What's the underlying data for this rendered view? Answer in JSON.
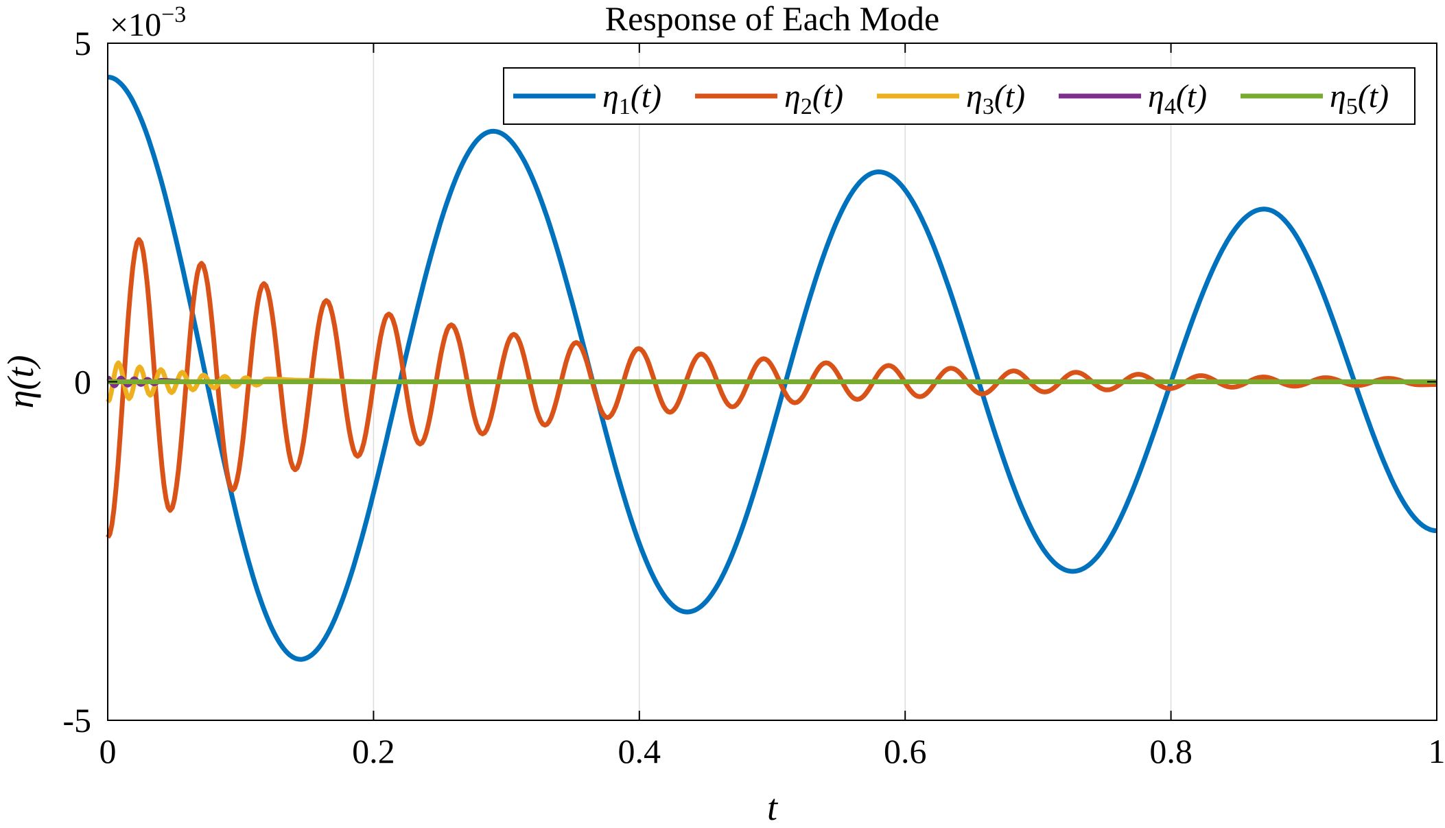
{
  "chart_data": {
    "type": "line",
    "title": "Response of Each Mode",
    "xlabel": "t",
    "ylabel": "η(t)",
    "y_exponent_label": "×10",
    "y_exponent_power": "−3",
    "xlim": [
      0,
      1
    ],
    "ylim": [
      -5,
      5
    ],
    "x_ticks": [
      0,
      0.2,
      0.4,
      0.6,
      0.8,
      1
    ],
    "x_tick_labels": [
      "0",
      "0.2",
      "0.4",
      "0.6",
      "0.8",
      "1"
    ],
    "y_ticks": [
      -5,
      0,
      5
    ],
    "y_tick_labels": [
      "-5",
      "0",
      "5"
    ],
    "grid": "vertical",
    "legend_position": "top-right",
    "series": [
      {
        "name": "η1(t)",
        "sym": "η",
        "sub": "1",
        "arg": "(t)",
        "color": "#0072BD",
        "x": [
          0,
          0.145,
          0.29,
          0.436,
          0.58,
          0.726,
          0.87,
          1.0
        ],
        "y": [
          4.5,
          -4.1,
          3.7,
          -3.4,
          3.1,
          -2.8,
          2.55,
          -2.2
        ]
      },
      {
        "name": "η2(t)",
        "sym": "η",
        "sub": "2",
        "arg": "(t)",
        "color": "#D95319",
        "x": [
          0,
          0.0235,
          0.047,
          0.0705,
          0.094,
          0.1175,
          0.141,
          0.1645,
          0.188,
          0.2115,
          0.235,
          0.2585,
          0.282,
          0.3055,
          0.329,
          0.3525,
          0.376,
          0.3995,
          0.423,
          0.4465,
          0.47,
          0.4935,
          0.517,
          0.5405,
          0.564,
          0.5875,
          0.611,
          0.6345,
          0.658,
          0.6815,
          0.705,
          0.7285,
          0.752,
          0.7755,
          0.799,
          0.8225,
          0.846,
          0.8695,
          0.893,
          0.9165,
          0.94,
          0.9635,
          0.987,
          1.0
        ],
        "y": [
          -2.3,
          2.1,
          -1.9,
          1.75,
          -1.6,
          1.45,
          -1.3,
          1.2,
          -1.1,
          1.0,
          -0.92,
          0.84,
          -0.77,
          0.7,
          -0.64,
          0.58,
          -0.53,
          0.49,
          -0.45,
          0.41,
          -0.37,
          0.34,
          -0.31,
          0.28,
          -0.26,
          0.24,
          -0.22,
          0.2,
          -0.18,
          0.16,
          -0.15,
          0.14,
          -0.12,
          0.11,
          -0.1,
          0.09,
          -0.08,
          0.07,
          -0.065,
          0.06,
          -0.055,
          0.05,
          -0.045,
          -0.04
        ]
      },
      {
        "name": "η3(t)",
        "sym": "η",
        "sub": "3",
        "arg": "(t)",
        "color": "#EDB120",
        "x": [
          0,
          0.008,
          0.016,
          0.024,
          0.032,
          0.04,
          0.048,
          0.056,
          0.064,
          0.072,
          0.08,
          0.088,
          0.096,
          0.104,
          0.112,
          0.12,
          0.15,
          0.2,
          1.0
        ],
        "y": [
          -0.3,
          0.28,
          -0.25,
          0.22,
          -0.2,
          0.18,
          -0.16,
          0.14,
          -0.12,
          0.1,
          -0.09,
          0.08,
          -0.07,
          0.06,
          -0.05,
          0.04,
          0.02,
          0.0,
          0.0
        ]
      },
      {
        "name": "η4(t)",
        "sym": "η",
        "sub": "4",
        "arg": "(t)",
        "color": "#7E2F8E",
        "x": [
          0,
          0.005,
          0.01,
          0.015,
          0.02,
          0.025,
          0.03,
          0.035,
          0.04,
          0.06,
          1.0
        ],
        "y": [
          0.06,
          -0.06,
          0.055,
          -0.05,
          0.045,
          -0.04,
          0.035,
          -0.03,
          0.02,
          0.0,
          0.0
        ]
      },
      {
        "name": "η5(t)",
        "sym": "η",
        "sub": "5",
        "arg": "(t)",
        "color": "#77AC30",
        "x": [
          0,
          1.0
        ],
        "y": [
          0.0,
          0.0
        ]
      }
    ]
  }
}
